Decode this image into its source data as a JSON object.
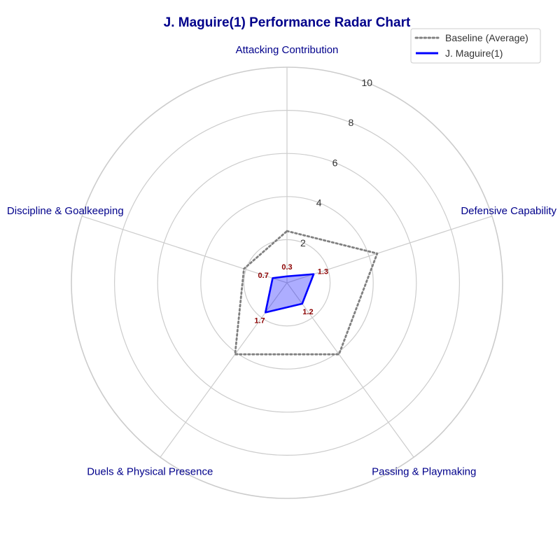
{
  "chart_data": {
    "type": "radar",
    "title": "J. Maguire(1) Performance Radar Chart",
    "axes": [
      "Attacking Contribution",
      "Defensive Capability",
      "Passing & Playmaking",
      "Duels & Physical Presence",
      "Discipline & Goalkeeping"
    ],
    "rlim": [
      0,
      10
    ],
    "rticks": [
      "2",
      "4",
      "6",
      "8",
      "10"
    ],
    "grid": true,
    "legend_position": "top-right",
    "series": [
      {
        "name": "Baseline (Average)",
        "values": [
          2.4,
          4.4,
          4.1,
          4.1,
          2.1
        ],
        "color": "#808080",
        "style": "dotted"
      },
      {
        "name": "J. Maguire(1)",
        "values": [
          0.3,
          1.3,
          1.2,
          1.7,
          0.7
        ],
        "value_labels": [
          "0.3",
          "1.3",
          "1.2",
          "1.7",
          "0.7"
        ],
        "color": "#0000ff",
        "fill": "#0000ff",
        "style": "solid"
      }
    ]
  }
}
